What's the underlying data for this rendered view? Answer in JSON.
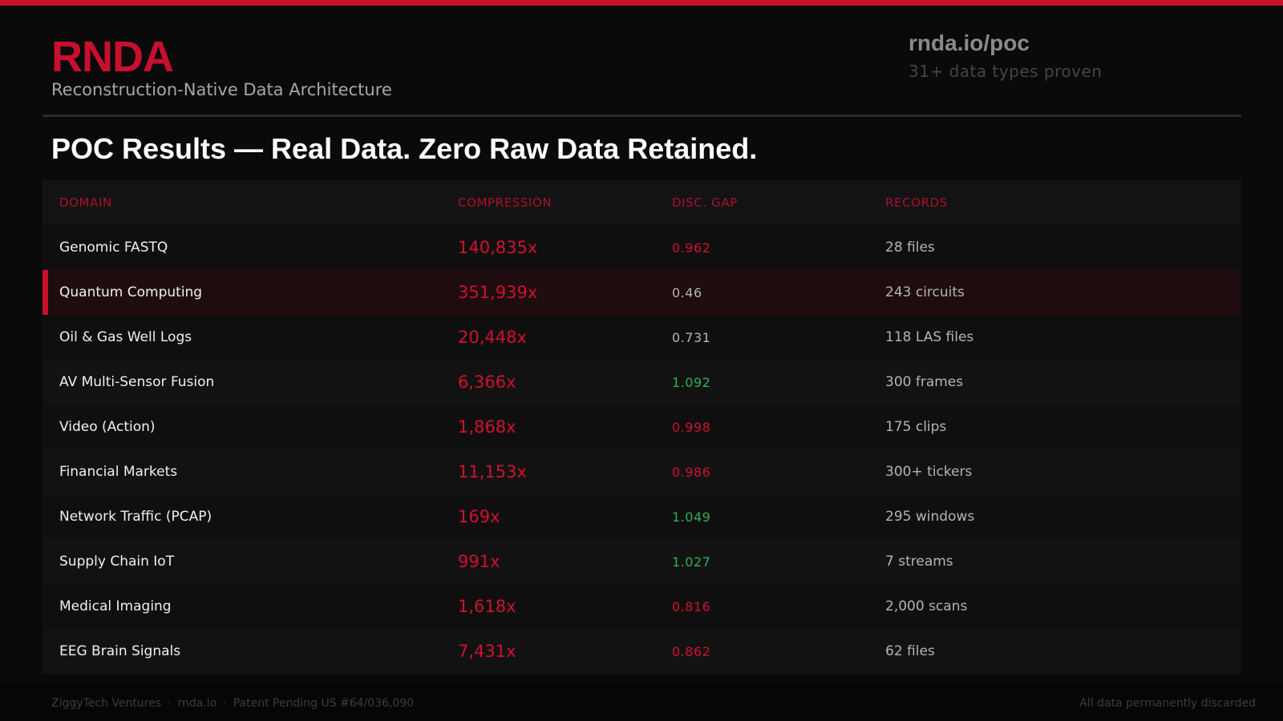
{
  "header": {
    "brand": "RNDA",
    "brand_subtitle": "Reconstruction-Native Data Architecture",
    "site_link": "rnda.io/poc",
    "site_tagline": "31+ data types proven"
  },
  "headline": "POC Results — Real Data. Zero Raw Data Retained.",
  "table": {
    "columns": [
      "DOMAIN",
      "COMPRESSION",
      "DISC. GAP",
      "RECORDS"
    ],
    "rows": [
      {
        "domain": "Genomic FASTQ",
        "compression": "140,835x",
        "disc_gap": "0.962",
        "gap_color": "red",
        "records": "28 files",
        "highlight": false
      },
      {
        "domain": "Quantum Computing",
        "compression": "351,939x",
        "disc_gap": "0.46",
        "gap_color": "gray",
        "records": "243 circuits",
        "highlight": true
      },
      {
        "domain": "Oil & Gas Well Logs",
        "compression": "20,448x",
        "disc_gap": "0.731",
        "gap_color": "gray",
        "records": "118 LAS files",
        "highlight": false
      },
      {
        "domain": "AV Multi-Sensor Fusion",
        "compression": "6,366x",
        "disc_gap": "1.092",
        "gap_color": "green",
        "records": "300 frames",
        "highlight": false
      },
      {
        "domain": "Video (Action)",
        "compression": "1,868x",
        "disc_gap": "0.998",
        "gap_color": "red",
        "records": "175 clips",
        "highlight": false
      },
      {
        "domain": "Financial Markets",
        "compression": "11,153x",
        "disc_gap": "0.986",
        "gap_color": "red",
        "records": "300+ tickers",
        "highlight": false
      },
      {
        "domain": "Network Traffic (PCAP)",
        "compression": "169x",
        "disc_gap": "1.049",
        "gap_color": "green",
        "records": "295 windows",
        "highlight": false
      },
      {
        "domain": "Supply Chain IoT",
        "compression": "991x",
        "disc_gap": "1.027",
        "gap_color": "green",
        "records": "7 streams",
        "highlight": false
      },
      {
        "domain": "Medical Imaging",
        "compression": "1,618x",
        "disc_gap": "0.816",
        "gap_color": "red",
        "records": "2,000 scans",
        "highlight": false
      },
      {
        "domain": "EEG Brain Signals",
        "compression": "7,431x",
        "disc_gap": "0.862",
        "gap_color": "red",
        "records": "62 files",
        "highlight": false
      }
    ]
  },
  "footer": {
    "company": "ZiggyTech Ventures",
    "site": "rnda.io",
    "patent": "Patent Pending US #64/036,090",
    "separator": "·",
    "disclaimer": "All data permanently discarded"
  },
  "colors": {
    "accent": "#c8102e",
    "background": "#0a0a0b",
    "positive": "#2fb24f"
  }
}
